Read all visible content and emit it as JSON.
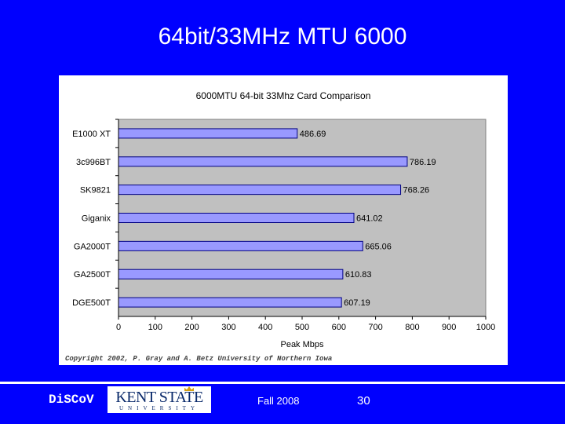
{
  "slide": {
    "title": "64bit/33MHz  MTU 6000",
    "brand": "DiSCoV",
    "logo_text": "KENT STATE",
    "logo_subtext": "UNIVERSITY",
    "date": "Fall 2008",
    "page": "30"
  },
  "colors": {
    "background": "#0000fe",
    "bar_fill": "#9999ff",
    "plot_area": "#c0c0c0"
  },
  "chart_data": {
    "type": "bar",
    "orientation": "horizontal",
    "title": "6000MTU 64-bit 33Mhz Card Comparison",
    "xlabel": "Peak Mbps",
    "ylabel": "",
    "xlim": [
      0,
      1000
    ],
    "xticks": [
      0,
      100,
      200,
      300,
      400,
      500,
      600,
      700,
      800,
      900,
      1000
    ],
    "categories": [
      "E1000 XT",
      "3c996BT",
      "SK9821",
      "Giganix",
      "GA2000T",
      "GA2500T",
      "DGE500T"
    ],
    "values": [
      486.69,
      786.19,
      768.26,
      641.02,
      665.06,
      610.83,
      607.19
    ],
    "data_labels": [
      "486.69",
      "786.19",
      "768.26",
      "641.02",
      "665.06",
      "610.83",
      "607.19"
    ],
    "grid": false,
    "legend": "none",
    "credit": "Copyright 2002, P. Gray and A. Betz  University of Northern Iowa"
  }
}
